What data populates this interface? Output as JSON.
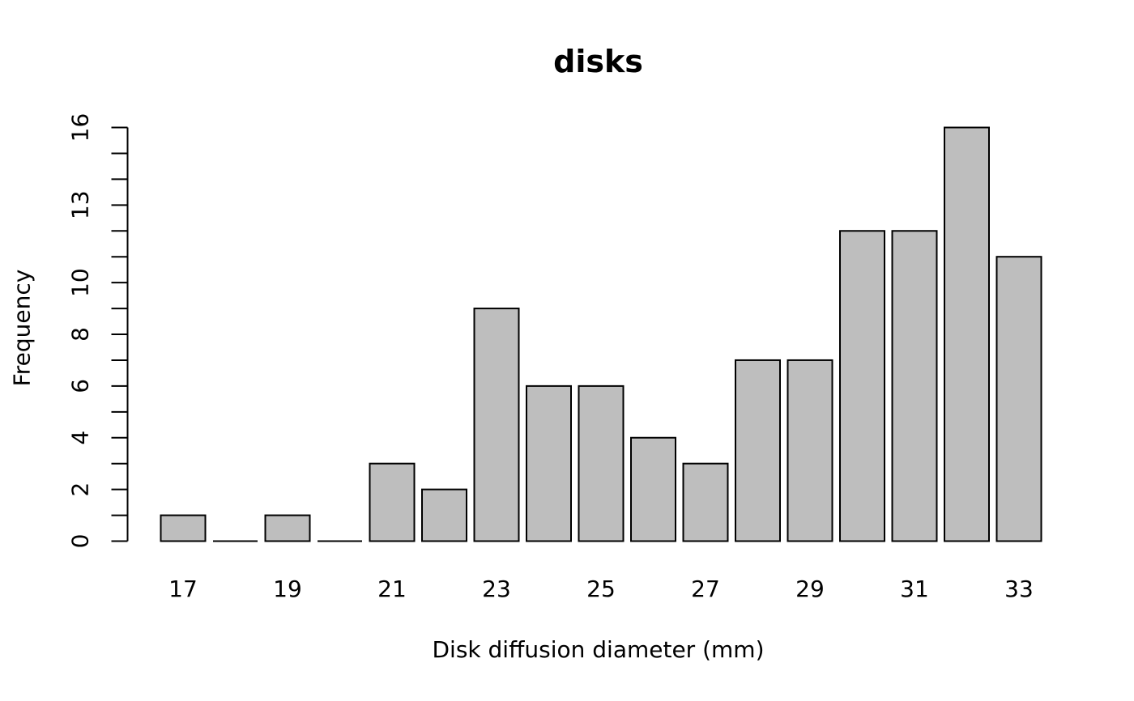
{
  "chart_data": {
    "type": "bar",
    "subtype": "histogram",
    "title": "disks",
    "xlabel": "Disk diffusion diameter (mm)",
    "ylabel": "Frequency",
    "categories": [
      17,
      18,
      19,
      20,
      21,
      22,
      23,
      24,
      25,
      26,
      27,
      28,
      29,
      30,
      31,
      32,
      33
    ],
    "values": [
      1,
      0,
      1,
      0,
      3,
      2,
      9,
      6,
      6,
      4,
      3,
      7,
      7,
      12,
      12,
      16,
      11
    ],
    "x_tick_labels": [
      "17",
      "19",
      "21",
      "23",
      "25",
      "27",
      "29",
      "31",
      "33"
    ],
    "y_tick_labels": [
      {
        "pos": 0,
        "label": "0"
      },
      {
        "pos": 2,
        "label": "2"
      },
      {
        "pos": 4,
        "label": "4"
      },
      {
        "pos": 6,
        "label": "6"
      },
      {
        "pos": 8,
        "label": "8"
      },
      {
        "pos": 10,
        "label": "10"
      },
      {
        "pos": 13,
        "label": "13"
      },
      {
        "pos": 16,
        "label": "16"
      }
    ],
    "y_minor_tick_step": 1,
    "ylim": [
      0,
      16
    ],
    "xlim": [
      16.5,
      33.5
    ],
    "grid": false,
    "legend": false,
    "bar_fill": "#bebebe",
    "bar_border": "#000000",
    "axis_color": "#000000",
    "text_color": "#000000",
    "background": "#ffffff"
  }
}
